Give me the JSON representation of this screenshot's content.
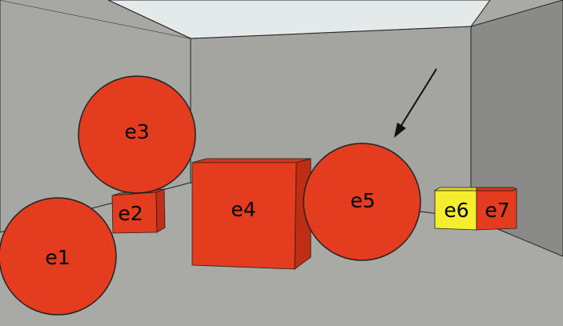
{
  "scene": {
    "objects": [
      {
        "id": "e1",
        "label": "e1",
        "shape": "sphere",
        "color": "#e33c1f"
      },
      {
        "id": "e2",
        "label": "e2",
        "shape": "cube",
        "color": "#e33c1f"
      },
      {
        "id": "e3",
        "label": "e3",
        "shape": "sphere",
        "color": "#e33c1f"
      },
      {
        "id": "e4",
        "label": "e4",
        "shape": "cube",
        "color": "#e33c1f"
      },
      {
        "id": "e5",
        "label": "e5",
        "shape": "sphere",
        "color": "#e33c1f"
      },
      {
        "id": "e6",
        "label": "e6",
        "shape": "cube",
        "color": "#f4ee2e"
      },
      {
        "id": "e7",
        "label": "e7",
        "shape": "cube",
        "color": "#e33c1f"
      }
    ],
    "arrow_target": "e5",
    "colors": {
      "red": "#e33c1f",
      "yellow": "#f4ee2e",
      "wall": "#a7a7a4",
      "floor": "#a9a9a6",
      "ceiling": "#e4e9ea",
      "right_wall": "#8a8a88"
    }
  }
}
